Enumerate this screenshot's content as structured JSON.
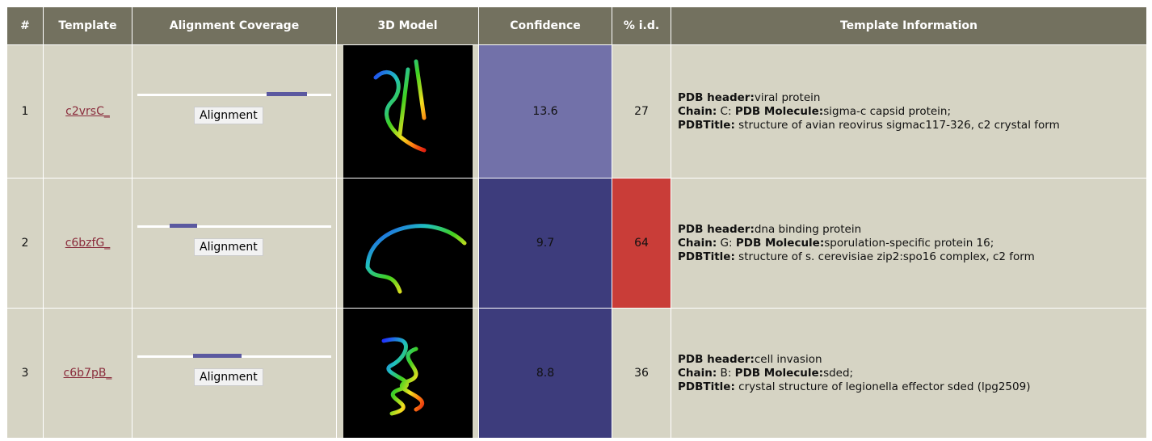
{
  "header": [
    "#",
    "Template",
    "Alignment Coverage",
    "3D Model",
    "Confidence",
    "% i.d.",
    "Template Information"
  ],
  "rows": [
    {
      "n": "1",
      "template": "c2vrsC_",
      "button": "Alignment",
      "confidence": "13.6",
      "pid": "27",
      "info": [
        [
          "PDB header:",
          "viral protein"
        ],
        [
          "Chain:",
          " C: "
        ],
        [
          "PDB Molecule:",
          "sigma-c capsid protein;"
        ],
        [
          "PDBTitle:",
          " structure of avian reovirus sigmac117-326, c2 crystal form"
        ]
      ]
    },
    {
      "n": "2",
      "template": "c6bzfG_",
      "button": "Alignment",
      "confidence": "9.7",
      "pid": "64",
      "info": [
        [
          "PDB header:",
          "dna binding protein"
        ],
        [
          "Chain:",
          " G: "
        ],
        [
          "PDB Molecule:",
          "sporulation-specific protein 16;"
        ],
        [
          "PDBTitle:",
          " structure of s. cerevisiae zip2:spo16 complex, c2 form"
        ]
      ]
    },
    {
      "n": "3",
      "template": "c6b7pB_",
      "button": "Alignment",
      "confidence": "8.8",
      "pid": "36",
      "info": [
        [
          "PDB header:",
          "cell invasion"
        ],
        [
          "Chain:",
          " B: "
        ],
        [
          "PDB Molecule:",
          "sded;"
        ],
        [
          "PDBTitle:",
          " crystal structure of legionella effector sded (lpg2509)"
        ]
      ]
    }
  ]
}
